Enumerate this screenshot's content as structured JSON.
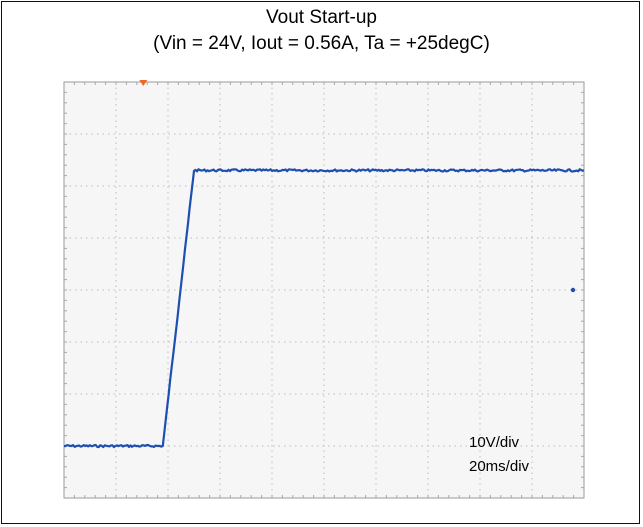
{
  "chart_data": {
    "type": "line",
    "title": "Vout Start-up",
    "subtitle": "(Vin = 24V, Iout = 0.56A, Ta = +25degC)",
    "x_units": "ms",
    "y_units": "V",
    "xlim": [
      0,
      200
    ],
    "ylim": [
      -40,
      40
    ],
    "x_divisions": 10,
    "y_divisions": 8,
    "grid": true,
    "series": [
      {
        "color": "#1d4fb0",
        "x": [
          0,
          25,
          38,
          50,
          195,
          200
        ],
        "y": [
          -30,
          -30,
          -30,
          23,
          23,
          23
        ]
      }
    ],
    "annotations": [
      "10V/div",
      "20ms/div"
    ],
    "trigger_marker_x": 30.5,
    "channel_marker_y": 0
  },
  "colors": {
    "trace": "#1d4fb0",
    "grid": "#bcbcbc",
    "screen": "#f6f6f6",
    "trigger": "#f26522"
  }
}
